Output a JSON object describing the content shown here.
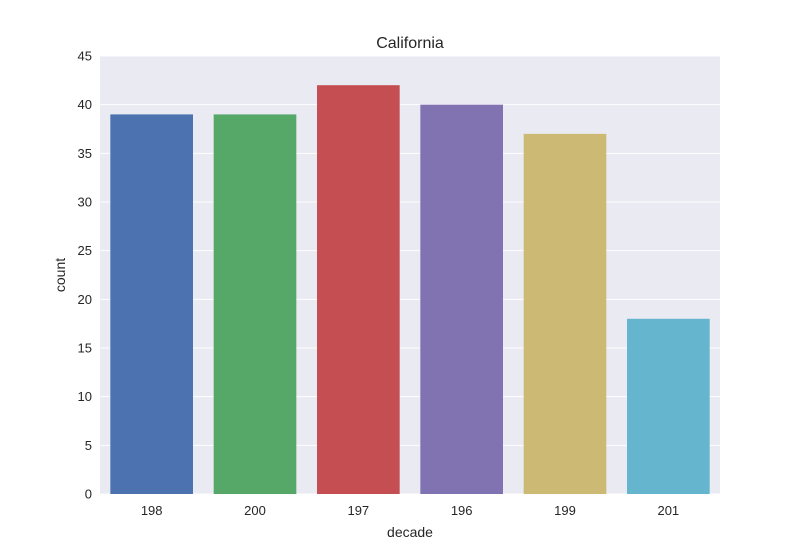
{
  "chart_data": {
    "type": "bar",
    "title": "California",
    "xlabel": "decade",
    "ylabel": "count",
    "categories": [
      "198",
      "200",
      "197",
      "196",
      "199",
      "201"
    ],
    "values": [
      39,
      39,
      42,
      40,
      37,
      18
    ],
    "ylim": [
      0,
      45
    ],
    "yticks": [
      0,
      5,
      10,
      15,
      20,
      25,
      30,
      35,
      40,
      45
    ],
    "grid": true,
    "background_color": "#EAEAF2",
    "grid_color": "#FFFFFF",
    "bar_colors": [
      "#4C72B0",
      "#55A868",
      "#C44E52",
      "#8172B2",
      "#CCB974",
      "#64B5CD"
    ]
  }
}
